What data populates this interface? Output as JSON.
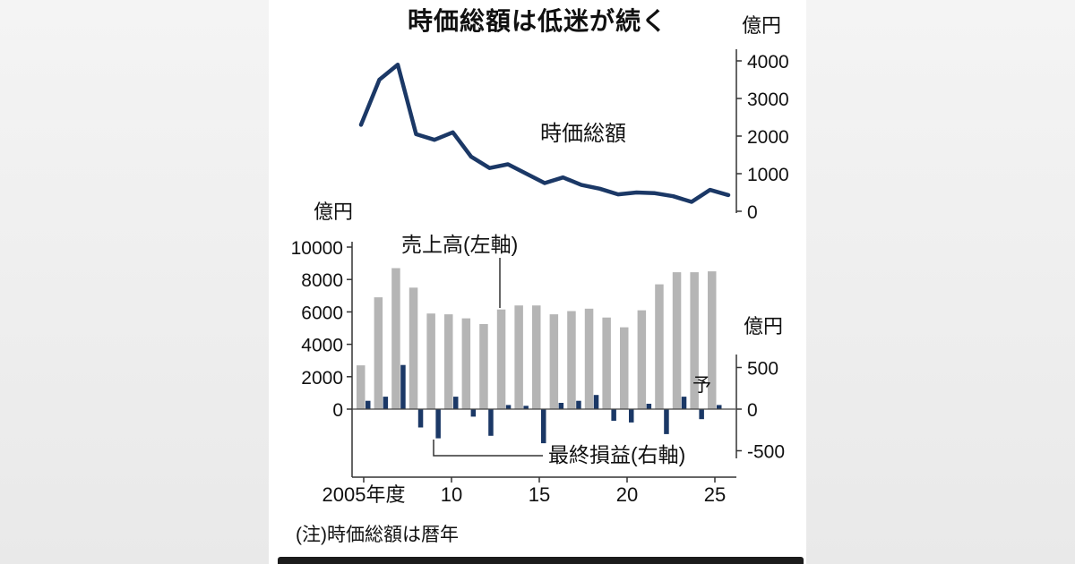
{
  "page": {
    "title": "時価総額は低迷が続く",
    "note": "(注)時価総額は暦年"
  },
  "units": {
    "top_right": "億円",
    "bottom_left": "億円",
    "bottom_right": "億円"
  },
  "labels": {
    "market_cap": "時価総額",
    "sales": "売上高(左軸)",
    "net_income": "最終損益(右軸)",
    "forecast": "予"
  },
  "colors": {
    "line": "#1b3866",
    "sales_bar": "#b5b5b5",
    "profit_bar": "#1b3866",
    "axis": "#333333"
  },
  "chart_data": [
    {
      "type": "line",
      "name": "時価総額",
      "unit": "億円",
      "x": [
        2005,
        2006,
        2007,
        2008,
        2009,
        2010,
        2011,
        2012,
        2013,
        2014,
        2015,
        2016,
        2017,
        2018,
        2019,
        2020,
        2021,
        2022,
        2023,
        2024,
        2025
      ],
      "values": [
        2300,
        3500,
        3900,
        2050,
        1900,
        2100,
        1450,
        1150,
        1250,
        1000,
        750,
        900,
        700,
        600,
        450,
        500,
        480,
        400,
        250,
        570,
        430
      ],
      "ylim": [
        0,
        4000
      ],
      "yticks": [
        0,
        1000,
        2000,
        3000,
        4000
      ],
      "y_axis_side": "right",
      "note": "暦年ベース"
    },
    {
      "type": "bar",
      "x": [
        2005,
        2006,
        2007,
        2008,
        2009,
        2010,
        2011,
        2012,
        2013,
        2014,
        2015,
        2016,
        2017,
        2018,
        2019,
        2020,
        2021,
        2022,
        2023,
        2024,
        2025
      ],
      "xticks": [
        {
          "index": 0,
          "label": "2005年度"
        },
        {
          "index": 5,
          "label": "10"
        },
        {
          "index": 10,
          "label": "15"
        },
        {
          "index": 15,
          "label": "20"
        },
        {
          "index": 20,
          "label": "25"
        }
      ],
      "series": [
        {
          "name": "売上高(左軸)",
          "axis": "left",
          "unit": "億円",
          "values": [
            2700,
            6900,
            8700,
            7500,
            5900,
            5850,
            5600,
            5250,
            6150,
            6400,
            6400,
            5850,
            6050,
            6200,
            5650,
            5050,
            6100,
            7700,
            8450,
            8450,
            8500
          ]
        },
        {
          "name": "最終損益(右軸)",
          "axis": "right",
          "unit": "億円",
          "values": [
            100,
            150,
            530,
            -220,
            -350,
            150,
            -90,
            -320,
            50,
            40,
            -410,
            75,
            100,
            170,
            -140,
            -160,
            65,
            -300,
            150,
            -120,
            50
          ]
        }
      ],
      "left_ylim": [
        0,
        10000
      ],
      "left_yticks": [
        0,
        2000,
        4000,
        6000,
        8000,
        10000
      ],
      "right_ylim": [
        -800,
        500
      ],
      "right_yticks": [
        -500,
        0,
        500
      ],
      "forecast": {
        "index": 20,
        "label": "予"
      }
    }
  ]
}
